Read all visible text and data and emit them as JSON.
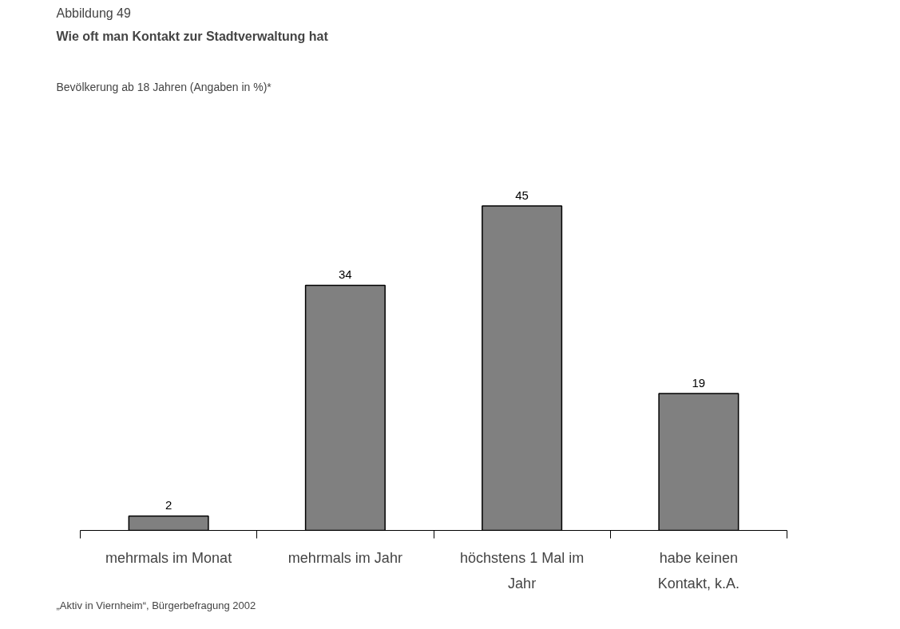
{
  "chart_data": {
    "type": "bar",
    "title": "Wie oft man Kontakt zur Stadtverwaltung hat",
    "subtitle": "Abbildung 49",
    "ylabel": null,
    "annotations": [
      "Bevölkerung ab 18 Jahren (Angaben in %)*",
      "„Aktiv in Viernheim“, Bürgerbefragung 2002"
    ],
    "categories": [
      "mehrmals im Monat",
      "mehrmals im Jahr",
      "höchstens 1 Mal im Jahr",
      "habe keinen Kontakt, k.A."
    ],
    "values": [
      2,
      34,
      45,
      19
    ],
    "color": "#808080",
    "data_labels": true,
    "grid": false
  }
}
